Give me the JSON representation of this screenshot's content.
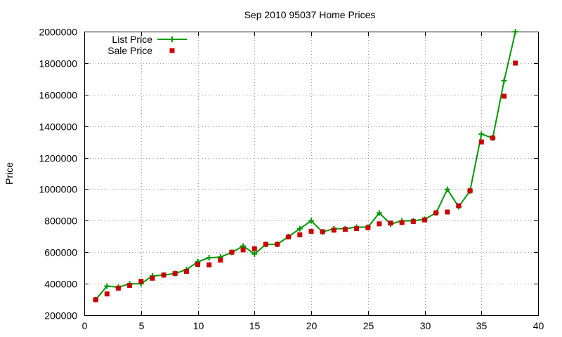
{
  "chart_data": {
    "type": "line",
    "title": "Sep 2010 95037 Home Prices",
    "xlabel": "",
    "ylabel": "Price",
    "xlim": [
      0,
      40
    ],
    "ylim": [
      200000,
      2000000
    ],
    "x_ticks": [
      0,
      5,
      10,
      15,
      20,
      25,
      30,
      35,
      40
    ],
    "y_ticks": [
      200000,
      400000,
      600000,
      800000,
      1000000,
      1200000,
      1400000,
      1600000,
      1800000,
      2000000
    ],
    "x_tick_labels": [
      "0",
      "5",
      "10",
      "15",
      "20",
      "25",
      "30",
      "35",
      "40"
    ],
    "y_tick_labels": [
      "200000",
      "400000",
      "600000",
      "800000",
      "1000000",
      "1200000",
      "1400000",
      "1600000",
      "1800000",
      "2000000"
    ],
    "grid": true,
    "legend_position": "top-left",
    "series": [
      {
        "name": "List Price",
        "style": "line-with-plus-markers",
        "color": "#009900",
        "x": [
          1,
          2,
          3,
          4,
          5,
          6,
          7,
          8,
          9,
          10,
          11,
          12,
          13,
          14,
          15,
          16,
          17,
          18,
          19,
          20,
          21,
          22,
          23,
          24,
          25,
          26,
          27,
          28,
          29,
          30,
          31,
          32,
          33,
          34,
          35,
          36,
          37,
          38
        ],
        "values": [
          299000,
          385000,
          378000,
          399000,
          400000,
          449000,
          455000,
          465000,
          489000,
          539000,
          565000,
          569000,
          599000,
          639000,
          589000,
          649000,
          650000,
          699000,
          749000,
          799000,
          729000,
          749000,
          749000,
          759000,
          759000,
          849000,
          779000,
          799000,
          799000,
          809000,
          849000,
          999000,
          889000,
          989000,
          1349000,
          1325000,
          1688000,
          1999000
        ]
      },
      {
        "name": "Sale Price",
        "style": "square-markers",
        "color": "#cc0000",
        "x": [
          1,
          2,
          3,
          4,
          5,
          6,
          7,
          8,
          9,
          10,
          11,
          12,
          13,
          14,
          15,
          16,
          17,
          18,
          19,
          20,
          21,
          22,
          23,
          24,
          25,
          26,
          27,
          28,
          29,
          30,
          31,
          32,
          33,
          34,
          35,
          36,
          37,
          38
        ],
        "values": [
          299000,
          335000,
          372000,
          389000,
          415000,
          435000,
          455000,
          465000,
          478000,
          522000,
          520000,
          550000,
          600000,
          615000,
          622000,
          650000,
          650000,
          697000,
          710000,
          733000,
          730000,
          740000,
          745000,
          750000,
          755000,
          780000,
          785000,
          788000,
          795000,
          805000,
          850000,
          855000,
          895000,
          990000,
          1300000,
          1325000,
          1590000,
          1800000
        ]
      }
    ]
  }
}
